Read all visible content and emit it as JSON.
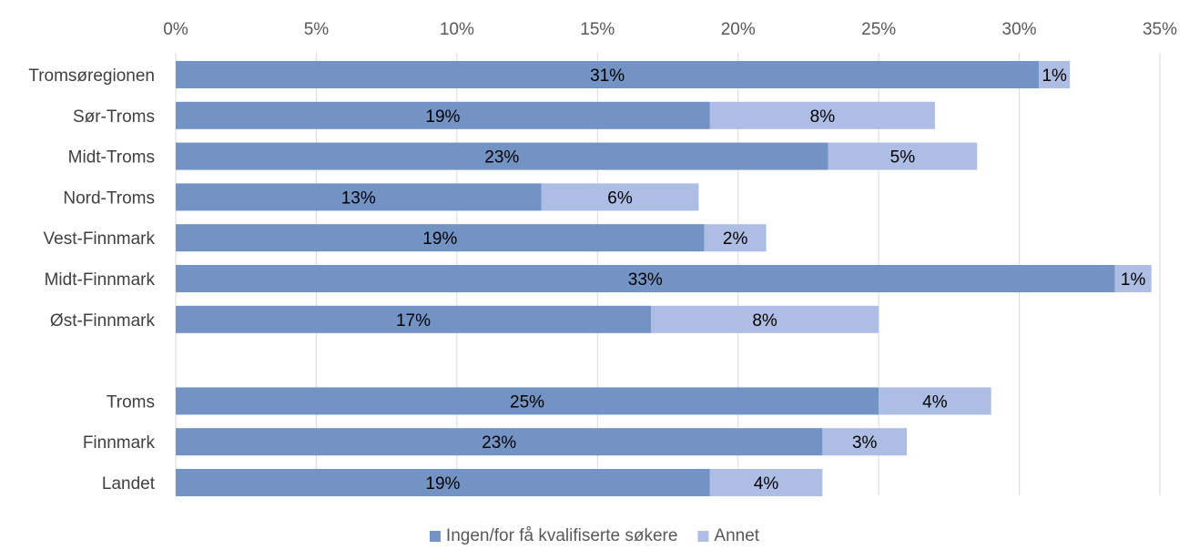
{
  "chart_data": {
    "type": "bar",
    "orientation": "horizontal",
    "stacked": true,
    "title": "",
    "xlabel": "",
    "ylabel": "",
    "xlim": [
      0,
      35
    ],
    "x_ticks": [
      "0%",
      "5%",
      "10%",
      "15%",
      "20%",
      "25%",
      "30%",
      "35%"
    ],
    "x_tick_values": [
      0,
      5,
      10,
      15,
      20,
      25,
      30,
      35
    ],
    "grid": "vertical",
    "legend_position": "bottom",
    "categories": [
      "Tromsøregionen",
      "Sør-Troms",
      "Midt-Troms",
      "Nord-Troms",
      "Vest-Finnmark",
      "Midt-Finnmark",
      "Øst-Finnmark",
      "",
      "Troms",
      "Finnmark",
      "Landet"
    ],
    "series": [
      {
        "name": "Ingen/for få kvalifiserte søkere",
        "color": "#7393c4",
        "values": [
          30.7,
          19.0,
          23.2,
          13.0,
          18.8,
          33.4,
          16.9,
          null,
          25.0,
          23.0,
          19.0
        ],
        "labels": [
          "31%",
          "19%",
          "23%",
          "13%",
          "19%",
          "33%",
          "17%",
          "",
          "25%",
          "23%",
          "19%"
        ]
      },
      {
        "name": "Annet",
        "color": "#adbde3",
        "values": [
          1.1,
          8.0,
          5.3,
          5.6,
          2.2,
          1.3,
          8.1,
          null,
          4.0,
          3.0,
          4.0
        ],
        "labels": [
          "1%",
          "8%",
          "5%",
          "6%",
          "2%",
          "1%",
          "8%",
          "",
          "4%",
          "3%",
          "4%"
        ]
      }
    ]
  },
  "colors": {
    "grid": "#d9d9d9",
    "axis_text": "#595959"
  }
}
